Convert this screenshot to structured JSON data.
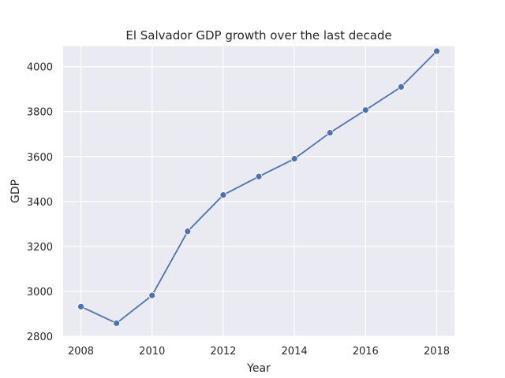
{
  "chart_data": {
    "type": "line",
    "title": "El Salvador GDP growth over the last decade",
    "xlabel": "Year",
    "ylabel": "GDP",
    "x": [
      2008,
      2009,
      2010,
      2011,
      2012,
      2013,
      2014,
      2015,
      2016,
      2017,
      2018
    ],
    "series": [
      {
        "values": [
          2932,
          2858,
          2982,
          3267,
          3429,
          3511,
          3590,
          3706,
          3807,
          3910,
          4069
        ]
      }
    ],
    "xlim": [
      2007.5,
      2018.5
    ],
    "ylim": [
      2800,
      4090
    ],
    "xticks": [
      2008,
      2010,
      2012,
      2014,
      2016,
      2018
    ],
    "yticks": [
      2800,
      3000,
      3200,
      3400,
      3600,
      3800,
      4000
    ],
    "grid": true,
    "marker": "circle",
    "colors": {
      "background": "#eaeaf2",
      "grid": "#ffffff",
      "line": "#4c72b0",
      "marker_edge": "#ffffff"
    }
  }
}
